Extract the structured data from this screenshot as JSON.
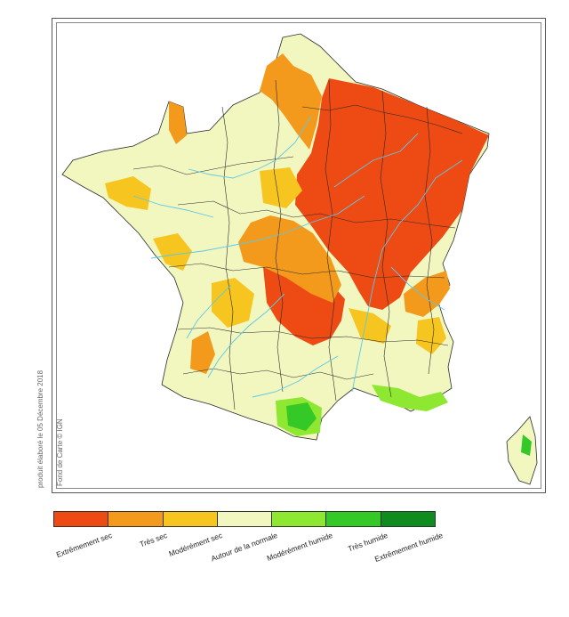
{
  "credits": {
    "date": "produit élaboré le 05 Décembre 2018",
    "base_map": "Fond de Carte © IGN"
  },
  "legend": [
    {
      "label": "Extrêmement sec",
      "color": "#ee4a14"
    },
    {
      "label": "Très sec",
      "color": "#f39a1c"
    },
    {
      "label": "Modérément sec",
      "color": "#f7c51f"
    },
    {
      "label": "Autour de la normale",
      "color": "#f2f7c0"
    },
    {
      "label": "Modérément humide",
      "color": "#8ee832"
    },
    {
      "label": "Très humide",
      "color": "#35c927"
    },
    {
      "label": "Extrêmement humide",
      "color": "#0f8c1e"
    }
  ],
  "colors": {
    "rivers": "#5cc8e6",
    "boundaries": "#2b2b2b",
    "frame": "#555555"
  }
}
